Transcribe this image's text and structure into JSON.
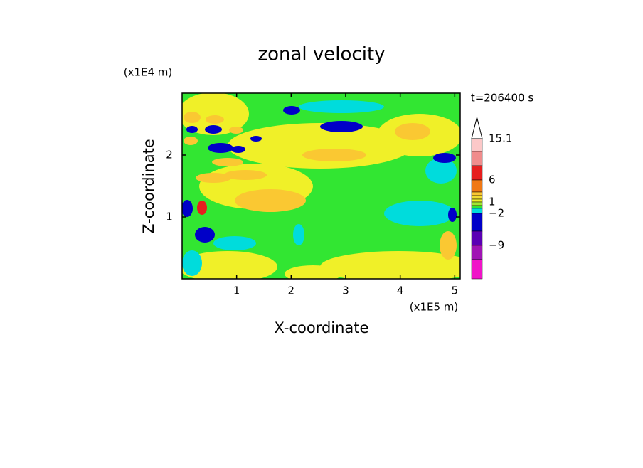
{
  "chart_data": {
    "type": "contour",
    "title": "zonal velocity",
    "time_label": "t=206400 s",
    "x_label": "X-coordinate",
    "x_unit": "(x1E5 m)",
    "y_label": "Z-coordinate",
    "y_unit": "(x1E4 m)",
    "xlim": [
      0,
      5.1
    ],
    "xticks": [
      1,
      2,
      3,
      4,
      5
    ],
    "ylim": [
      0,
      3
    ],
    "yticks": [
      1,
      2
    ],
    "colorbar": {
      "colors": [
        "#fcc8c8",
        "#f08c8c",
        "#e61e1e",
        "#f07814",
        "#fac832",
        "#f0dc32",
        "#f0f028",
        "#a0e632",
        "#32e632",
        "#00dcdc",
        "#0000c8",
        "#5a00b4",
        "#a014b4",
        "#f014c8"
      ],
      "ticks": [
        15.1,
        6,
        1,
        {
          "value": -2,
          "label": "−2"
        },
        {
          "value": -9,
          "label": "−9"
        }
      ]
    }
  }
}
